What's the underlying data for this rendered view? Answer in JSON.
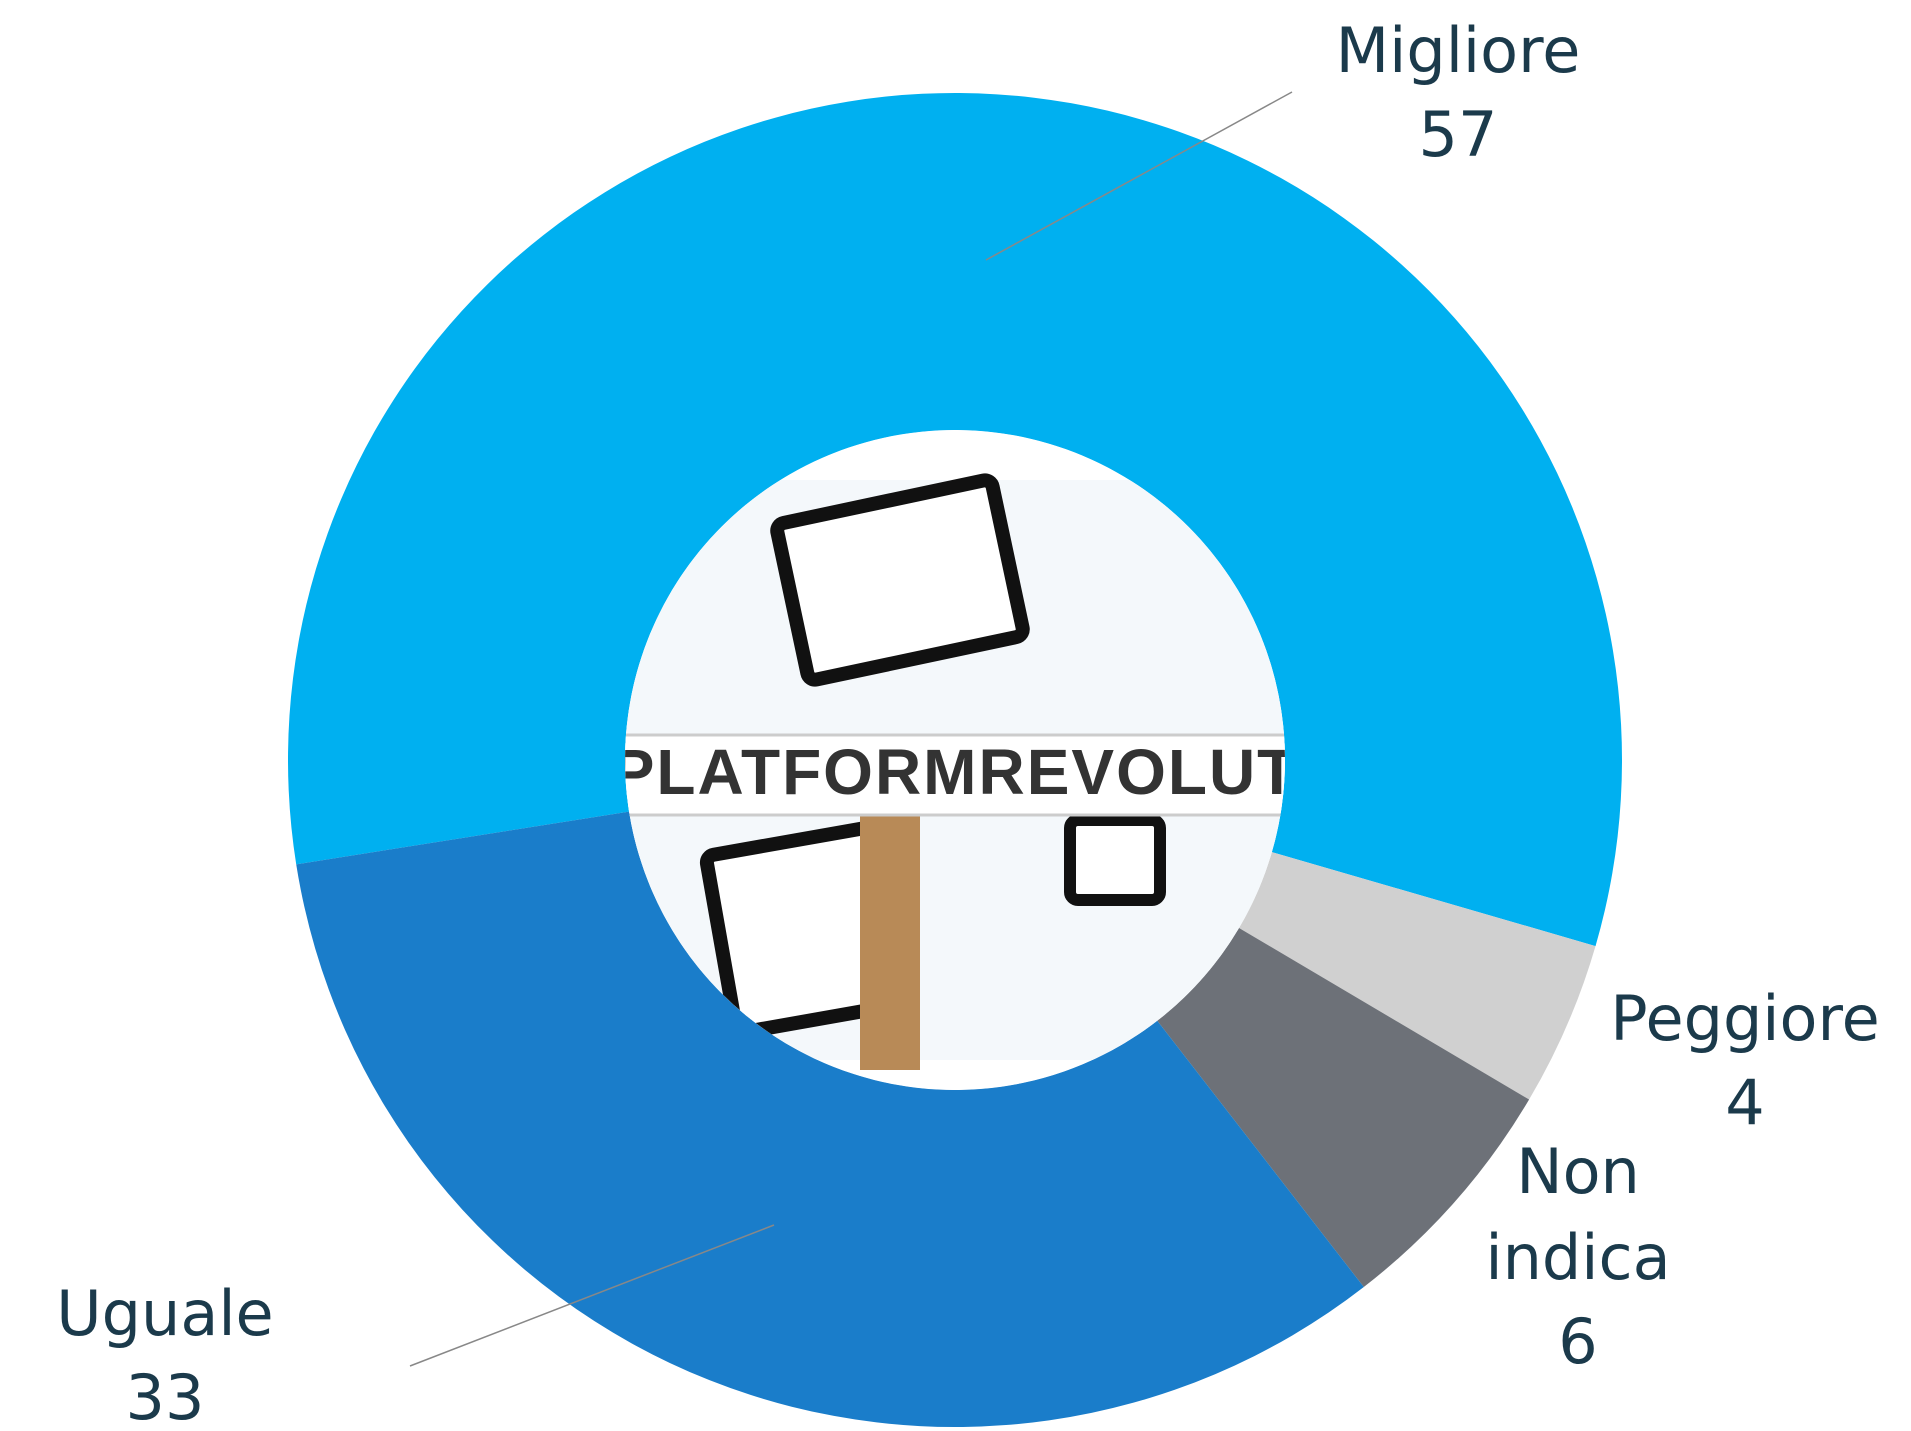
{
  "chart_data": {
    "type": "donut",
    "categories": [
      "Migliore",
      "Peggiore",
      "Non indica",
      "Uguale"
    ],
    "values": [
      57,
      4,
      6,
      33
    ],
    "colors": [
      "#00b0f0",
      "#d0d0d0",
      "#6d7178",
      "#1a7dca"
    ],
    "center_text": "PLATFORMREVOLUT"
  }
}
